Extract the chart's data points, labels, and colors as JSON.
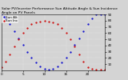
{
  "title": "Solar PV/Inverter Performance Sun Altitude Angle & Sun Incidence Angle on PV Panels",
  "legend": [
    "Sun Alt",
    "Sun Inc"
  ],
  "blue_x": [
    0,
    1,
    2,
    3,
    4,
    5,
    6,
    7,
    8,
    9,
    10,
    11,
    12,
    13,
    14,
    15,
    16,
    17,
    18,
    19,
    20,
    21,
    22,
    23,
    24
  ],
  "blue_y": [
    90,
    83,
    74,
    63,
    52,
    41,
    30,
    21,
    13,
    7,
    3,
    1,
    3,
    7,
    13,
    21,
    30,
    41,
    52,
    63,
    74,
    83,
    90,
    90,
    90
  ],
  "red_x": [
    0,
    1,
    2,
    3,
    4,
    5,
    6,
    7,
    8,
    9,
    10,
    11,
    12,
    13,
    14,
    15,
    16,
    17,
    18,
    19,
    20,
    21,
    22,
    23,
    24
  ],
  "red_y": [
    5,
    14,
    26,
    38,
    50,
    60,
    68,
    74,
    77,
    79,
    80,
    79,
    77,
    74,
    68,
    60,
    50,
    38,
    26,
    14,
    5,
    2,
    1,
    1,
    1
  ],
  "xlim": [
    0,
    24
  ],
  "ylim": [
    0,
    90
  ],
  "yticks": [
    10,
    20,
    30,
    40,
    50,
    60,
    70,
    80,
    90
  ],
  "xticks": [
    0,
    5,
    10,
    15,
    20
  ],
  "blue_color": "#0000cc",
  "red_color": "#cc0000",
  "background_color": "#d4d4d4",
  "plot_bg_color": "#d4d4d4",
  "title_fontsize": 3.2,
  "legend_fontsize": 3.0,
  "tick_fontsize": 3.0,
  "marker_size": 1.2
}
